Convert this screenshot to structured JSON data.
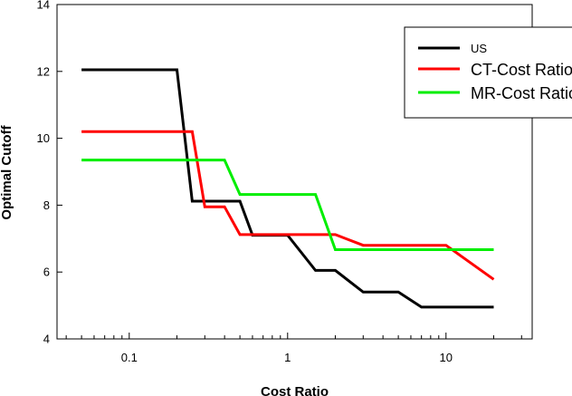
{
  "chart_data": {
    "type": "line",
    "xlabel": "Cost Ratio",
    "ylabel": "Optimal Cutoff",
    "x_scale": "log",
    "xlim": [
      0.035,
      35
    ],
    "ylim": [
      4,
      14
    ],
    "x_ticks": [
      {
        "value": 0.1,
        "label": "0.1"
      },
      {
        "value": 1,
        "label": "1"
      },
      {
        "value": 10,
        "label": "10"
      }
    ],
    "y_ticks": [
      {
        "value": 4,
        "label": "4"
      },
      {
        "value": 6,
        "label": "6"
      },
      {
        "value": 8,
        "label": "8"
      },
      {
        "value": 10,
        "label": "10"
      },
      {
        "value": 12,
        "label": "12"
      },
      {
        "value": 14,
        "label": "14"
      }
    ],
    "grid": false,
    "legend_position": "top-right",
    "series": [
      {
        "name": "US",
        "color": "#000000",
        "points": [
          [
            0.05,
            12.05
          ],
          [
            0.2,
            12.05
          ],
          [
            0.25,
            8.12
          ],
          [
            0.5,
            8.12
          ],
          [
            0.6,
            7.1
          ],
          [
            1,
            7.1
          ],
          [
            1.5,
            6.05
          ],
          [
            2,
            6.05
          ],
          [
            3,
            5.4
          ],
          [
            5,
            5.4
          ],
          [
            7,
            4.95
          ],
          [
            20,
            4.95
          ]
        ]
      },
      {
        "name": "CT-Cost Ratio",
        "color": "#ff0000",
        "points": [
          [
            0.05,
            10.2
          ],
          [
            0.25,
            10.2
          ],
          [
            0.3,
            7.95
          ],
          [
            0.4,
            7.95
          ],
          [
            0.5,
            7.12
          ],
          [
            2,
            7.12
          ],
          [
            3,
            6.8
          ],
          [
            10,
            6.8
          ],
          [
            20,
            5.78
          ]
        ]
      },
      {
        "name": "MR-Cost Ratio",
        "color": "#00ee00",
        "points": [
          [
            0.05,
            9.35
          ],
          [
            0.4,
            9.35
          ],
          [
            0.5,
            8.32
          ],
          [
            1.5,
            8.32
          ],
          [
            2,
            6.67
          ],
          [
            20,
            6.67
          ]
        ]
      }
    ]
  }
}
